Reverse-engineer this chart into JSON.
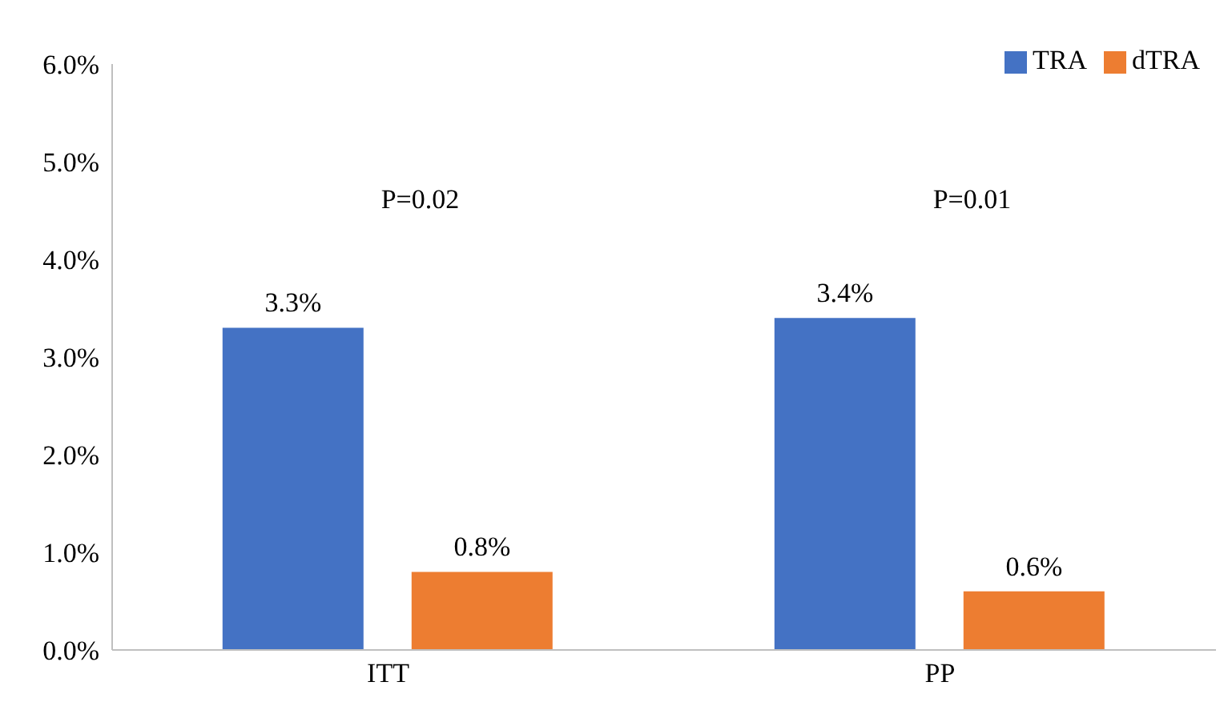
{
  "chart_data": {
    "type": "bar",
    "categories": [
      "ITT",
      "PP"
    ],
    "series": [
      {
        "name": "TRA",
        "color": "#4472c4",
        "values": [
          3.3,
          3.4
        ],
        "value_labels": [
          "3.3%",
          "3.4%"
        ]
      },
      {
        "name": "dTRA",
        "color": "#ed7d31",
        "values": [
          0.8,
          0.6
        ],
        "value_labels": [
          "0.8%",
          "0.6%"
        ]
      }
    ],
    "ylim": [
      0,
      6
    ],
    "yticks": [
      {
        "value": 0,
        "label": "0.0%"
      },
      {
        "value": 1,
        "label": "1.0%"
      },
      {
        "value": 2,
        "label": "2.0%"
      },
      {
        "value": 3,
        "label": "3.0%"
      },
      {
        "value": 4,
        "label": "4.0%"
      },
      {
        "value": 5,
        "label": "5.0%"
      },
      {
        "value": 6,
        "label": "6.0%"
      }
    ],
    "annotations": [
      "P=0.02",
      "P=0.01"
    ],
    "legend": "top right",
    "grid": false
  }
}
